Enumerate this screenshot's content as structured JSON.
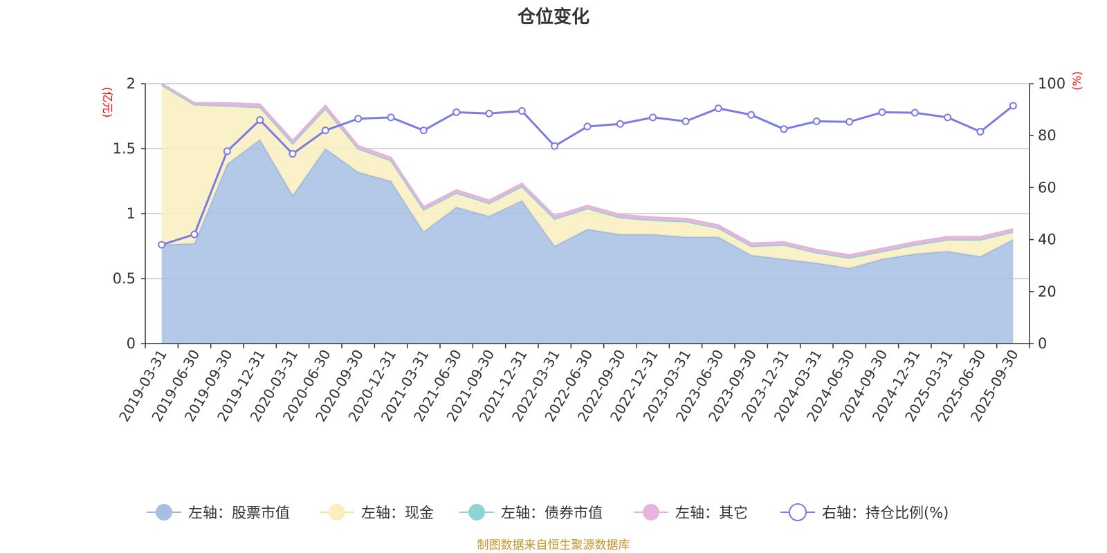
{
  "chart_data": {
    "type": "area",
    "title": "仓位变化",
    "source_note": "制图数据来自恒生聚源数据库",
    "left_axis": {
      "unit_label": "(亿元)",
      "min": 0,
      "max": 2,
      "ticks": [
        0,
        0.5,
        1,
        1.5,
        2
      ],
      "tick_labels": [
        "0",
        "0.5",
        "1",
        "1.5",
        "2"
      ]
    },
    "right_axis": {
      "unit_label": "(%)",
      "min": 0,
      "max": 100,
      "ticks": [
        0,
        20,
        40,
        60,
        80,
        100
      ],
      "tick_labels": [
        "0",
        "20",
        "40",
        "60",
        "80",
        "100"
      ]
    },
    "categories": [
      "2019-03-31",
      "2019-06-30",
      "2019-09-30",
      "2019-12-31",
      "2020-03-31",
      "2020-06-30",
      "2020-09-30",
      "2020-12-31",
      "2021-03-31",
      "2021-06-30",
      "2021-09-30",
      "2021-12-31",
      "2022-03-31",
      "2022-06-30",
      "2022-09-30",
      "2022-12-31",
      "2023-03-31",
      "2023-06-30",
      "2023-09-30",
      "2023-12-31",
      "2024-03-31",
      "2024-06-30",
      "2024-09-30",
      "2024-12-31",
      "2025-03-31",
      "2025-06-30",
      "2025-09-30"
    ],
    "series": [
      {
        "name": "左轴：股票市值",
        "axis": "left",
        "kind": "stacked-area",
        "color": "#a7bfe3",
        "line_color": "#9bb7dd",
        "values": [
          0.76,
          0.77,
          1.38,
          1.57,
          1.14,
          1.5,
          1.32,
          1.25,
          0.86,
          1.05,
          0.98,
          1.1,
          0.75,
          0.88,
          0.84,
          0.84,
          0.82,
          0.82,
          0.68,
          0.65,
          0.62,
          0.58,
          0.65,
          0.69,
          0.71,
          0.67,
          0.8
        ]
      },
      {
        "name": "左轴：现金",
        "axis": "left",
        "kind": "stacked-area",
        "color": "#faeec0",
        "line_color": "#f5e4a6",
        "values": [
          1.23,
          1.07,
          0.45,
          0.25,
          0.4,
          0.31,
          0.18,
          0.16,
          0.17,
          0.11,
          0.1,
          0.11,
          0.21,
          0.16,
          0.13,
          0.11,
          0.12,
          0.07,
          0.07,
          0.11,
          0.08,
          0.08,
          0.06,
          0.07,
          0.09,
          0.13,
          0.06
        ]
      },
      {
        "name": "左轴：债券市值",
        "axis": "left",
        "kind": "stacked-area",
        "color": "#8fd3d2",
        "line_color": "#8fd3d2",
        "values": [
          0,
          0,
          0,
          0,
          0,
          0,
          0,
          0,
          0,
          0,
          0,
          0,
          0,
          0,
          0,
          0,
          0,
          0,
          0,
          0,
          0,
          0,
          0,
          0,
          0,
          0,
          0
        ]
      },
      {
        "name": "左轴：其它",
        "axis": "left",
        "kind": "stacked-area",
        "color": "#e8b4dc",
        "line_color": "#e6b2da",
        "values": [
          0.01,
          0.01,
          0.02,
          0.02,
          0.02,
          0.02,
          0.02,
          0.02,
          0.02,
          0.02,
          0.02,
          0.02,
          0.02,
          0.02,
          0.02,
          0.02,
          0.02,
          0.02,
          0.02,
          0.02,
          0.02,
          0.02,
          0.02,
          0.02,
          0.02,
          0.02,
          0.02
        ]
      },
      {
        "name": "右轴：持仓比例(%)",
        "axis": "right",
        "kind": "line",
        "color": "#7b7be6",
        "values": [
          38,
          42,
          74,
          86,
          73,
          82,
          86.5,
          87,
          82,
          89,
          88.5,
          89.5,
          76,
          83.5,
          84.5,
          87,
          85.5,
          90.5,
          88,
          82.5,
          85.5,
          85.3,
          89,
          88.8,
          87,
          81.5,
          91.5
        ]
      }
    ],
    "legend_position": "bottom",
    "grid": true
  }
}
